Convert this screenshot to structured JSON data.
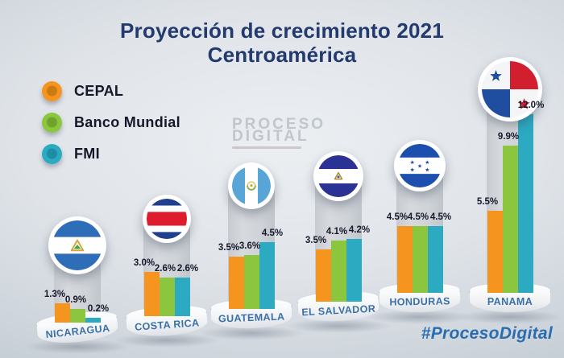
{
  "title": {
    "line1": "Proyección de crecimiento 2021",
    "line2": "Centroamérica"
  },
  "legend": [
    {
      "label": "CEPAL",
      "color": "#F5941F",
      "color_dark": "#C97B12"
    },
    {
      "label": "Banco Mundial",
      "color": "#8CC63E",
      "color_dark": "#6FA32B"
    },
    {
      "label": "FMI",
      "color": "#2BAAC2",
      "color_dark": "#1E8CA3"
    }
  ],
  "watermark": {
    "line1": "PROCESO",
    "line2": "DIGITAL"
  },
  "hashtag": "#ProcesoDigital",
  "chart_data": {
    "type": "bar",
    "unit": "percent",
    "title": "Proyección de crecimiento 2021 Centroamérica",
    "legend_position": "top-left",
    "ylim": [
      0,
      12
    ],
    "grid": false,
    "categories": [
      "NICARAGUA",
      "COSTA RICA",
      "GUATEMALA",
      "EL SALVADOR",
      "HONDURAS",
      "PANAMA"
    ],
    "flag_icons": [
      "flag-nicaragua",
      "flag-costa-rica",
      "flag-guatemala",
      "flag-el-salvador",
      "flag-honduras",
      "flag-panama"
    ],
    "series": [
      {
        "name": "CEPAL",
        "color": "#F5941F",
        "values": [
          1.3,
          3.0,
          3.5,
          3.5,
          4.5,
          5.5
        ]
      },
      {
        "name": "Banco Mundial",
        "color": "#8CC63E",
        "values": [
          0.9,
          2.6,
          3.6,
          4.1,
          4.5,
          9.9
        ]
      },
      {
        "name": "FMI",
        "color": "#2BAAC2",
        "values": [
          0.2,
          2.6,
          4.5,
          4.2,
          4.5,
          12.0
        ]
      }
    ],
    "value_labels": [
      [
        "1.3%",
        "0.9%",
        "0.2%"
      ],
      [
        "3.0%",
        "2.6%",
        "2.6%"
      ],
      [
        "3.5%",
        "3.6%",
        "4.5%"
      ],
      [
        "3.5%",
        "4.1%",
        "4.2%"
      ],
      [
        "4.5%",
        "4.5%",
        "4.5%"
      ],
      [
        "5.5%",
        "9.9%",
        "12.0%"
      ]
    ]
  }
}
